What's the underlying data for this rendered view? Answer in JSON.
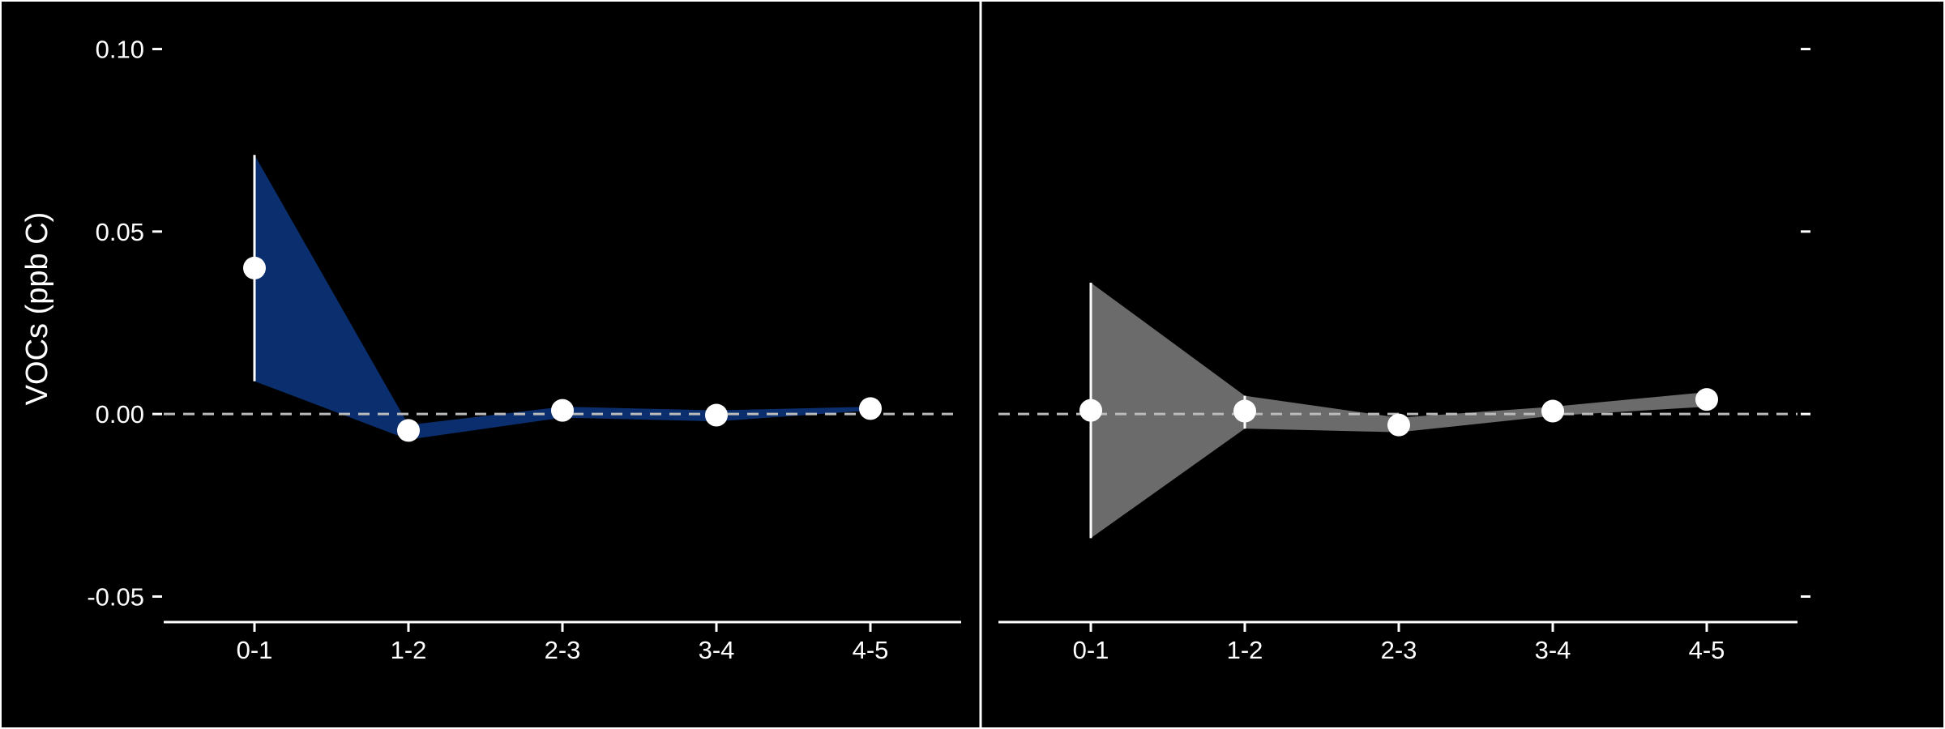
{
  "chart_data": [
    {
      "type": "line",
      "panel": "left",
      "categories": [
        "0-1",
        "1-2",
        "2-3",
        "3-4",
        "4-5"
      ],
      "values": [
        0.04,
        -0.0045,
        0.001,
        -0.0003,
        0.0015
      ],
      "band_upper": [
        0.071,
        -0.003,
        0.002,
        0.001,
        0.002
      ],
      "band_lower": [
        0.009,
        -0.007,
        -0.001,
        -0.002,
        0.001
      ],
      "ylabel": "VOCs (ppb C)",
      "xlabel": "",
      "ylim": [
        -0.057,
        0.109
      ],
      "yticks": [
        0.1,
        0.05,
        0.0,
        -0.05
      ],
      "ytick_labels": [
        "0.10",
        "0.05",
        "0.00",
        "-0.05"
      ],
      "reference_line": 0,
      "band_color": "#0b2f6e",
      "point_color": "#ffffff",
      "grid": false
    },
    {
      "type": "line",
      "panel": "right",
      "categories": [
        "0-1",
        "1-2",
        "2-3",
        "3-4",
        "4-5"
      ],
      "values": [
        0.001,
        0.0008,
        -0.003,
        0.0008,
        0.004
      ],
      "band_upper": [
        0.036,
        0.005,
        -0.001,
        0.002,
        0.006
      ],
      "band_lower": [
        -0.034,
        -0.004,
        -0.005,
        -0.0005,
        0.002
      ],
      "ylim": [
        -0.057,
        0.109
      ],
      "yticks": [
        0.1,
        0.05,
        0.0,
        -0.05
      ],
      "reference_line": 0,
      "band_color": "#6b6b6b",
      "point_color": "#ffffff",
      "grid": false
    }
  ],
  "colors": {
    "background": "#000000",
    "foreground": "#ffffff",
    "reference_line": "#bbbbbb"
  }
}
